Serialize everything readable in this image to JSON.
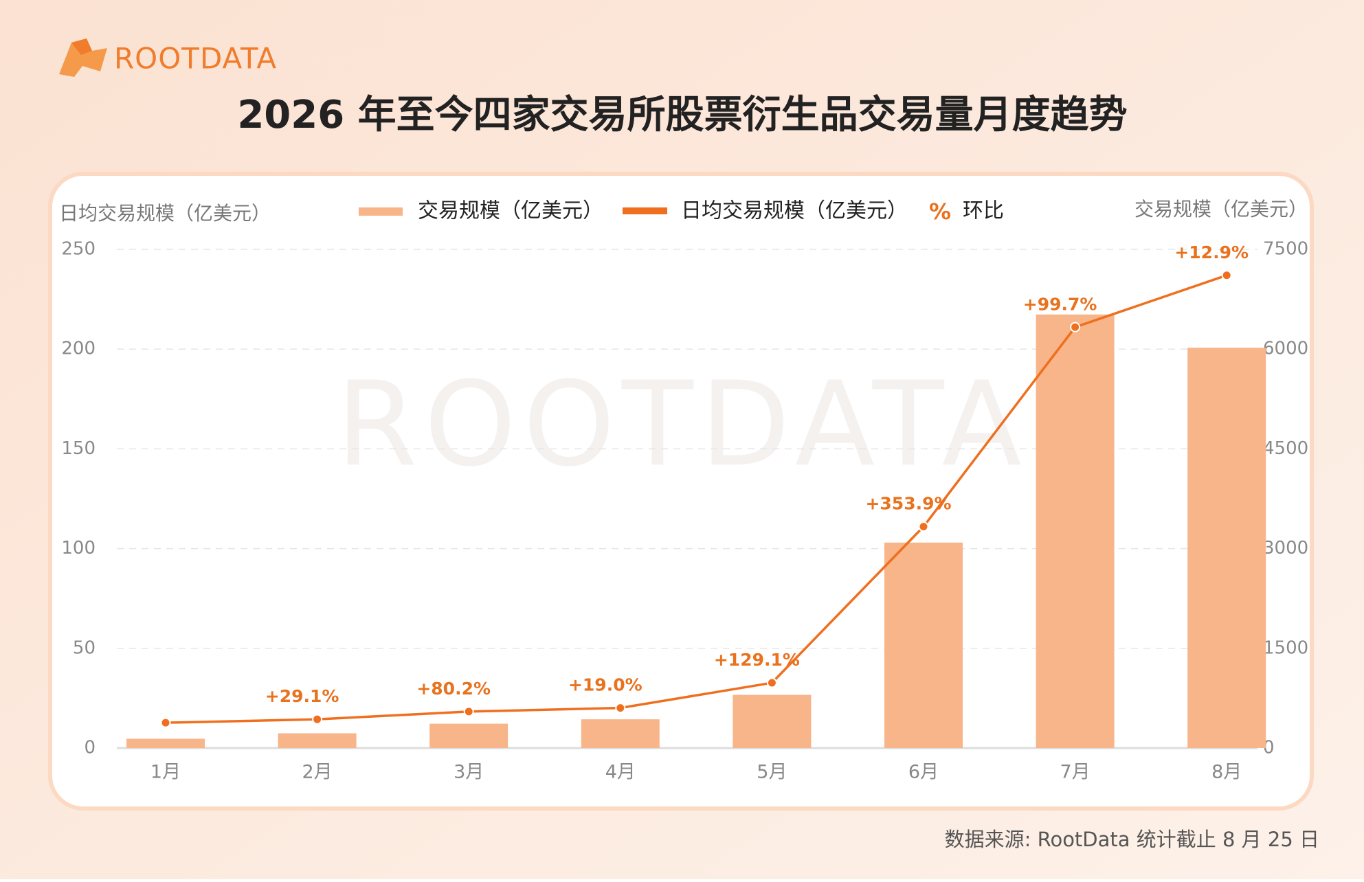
{
  "logo": "ROOTDATA",
  "watermark": "ROOTDATA",
  "source": "数据来源: RootData  统计截止 8 月 25 日",
  "chart_data": {
    "type": "bar",
    "title": "2026 年至今四家交易所股票衍生品交易量月度趋势",
    "y_label": "日均交易规模（亿美元）",
    "y2_label": "交易规模（亿美元）",
    "categories": [
      "1月",
      "2月",
      "3月",
      "4月",
      "5月",
      "6月",
      "7月",
      "8月"
    ],
    "series": [
      {
        "name": "交易规模（亿美元）",
        "type": "bar",
        "axis": "y2",
        "color": "#f8b589",
        "values": [
          140,
          222,
          366,
          432,
          800,
          3090,
          6520,
          6020
        ]
      },
      {
        "name": "日均交易规模（亿美元）",
        "type": "line",
        "axis": "y",
        "color": "#ef6f1f",
        "values": [
          12.7,
          14.4,
          18.3,
          20.1,
          32.7,
          111,
          211,
          237
        ]
      },
      {
        "name": "环比",
        "type": "label",
        "color": "#e8721e",
        "values": [
          null,
          29.1,
          80.2,
          19.0,
          129.1,
          353.9,
          99.7,
          12.9
        ],
        "value_labels": [
          null,
          "+29.1%",
          "+80.2%",
          "+19.0%",
          "+129.1%",
          "+353.9%",
          "+99.7%",
          "+12.9%"
        ]
      }
    ],
    "legend_symbol": "%",
    "ylim": [
      0,
      250
    ],
    "yticks": [
      0,
      50,
      100,
      150,
      200,
      250
    ],
    "y2lim": [
      0,
      7500
    ],
    "y2ticks": [
      0,
      1500,
      3000,
      4500,
      6000,
      7500
    ],
    "grid": true
  }
}
